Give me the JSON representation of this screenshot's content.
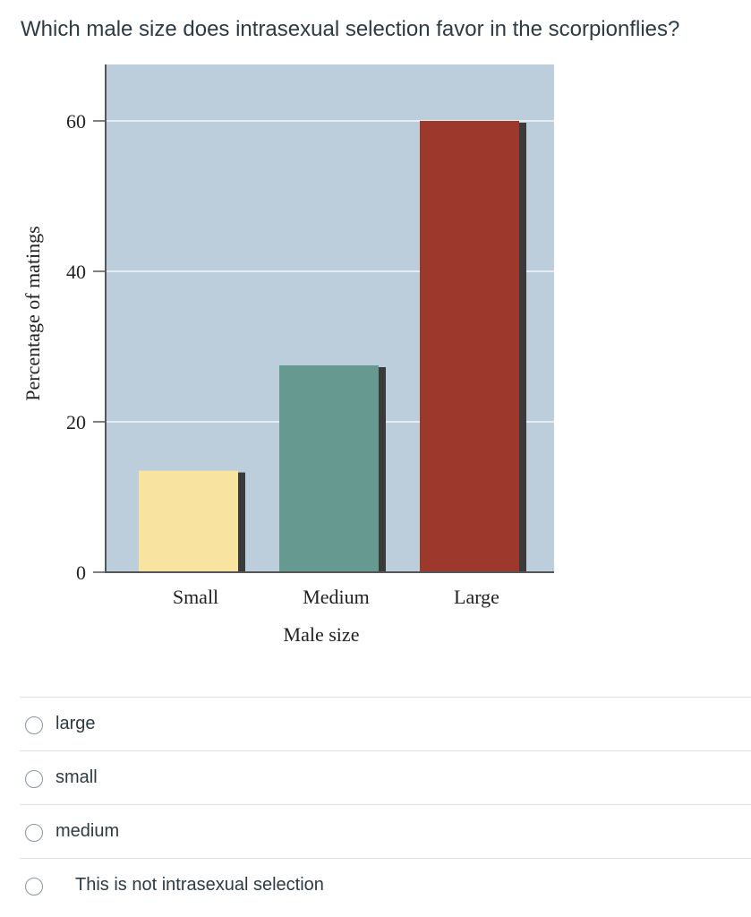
{
  "question": {
    "text": "Which male size does intrasexual selection favor in the scorpionflies?"
  },
  "chart_data": {
    "type": "bar",
    "categories": [
      "Small",
      "Medium",
      "Large"
    ],
    "values": [
      13.5,
      27.5,
      60
    ],
    "colors": [
      "#f8e4a0",
      "#66998f",
      "#9c382c"
    ],
    "xlabel": "Male size",
    "ylabel": "Percentage of matings",
    "yticks": [
      0,
      20,
      40,
      60
    ],
    "ylim": [
      0,
      66
    ],
    "grid": true,
    "background": "#bccddc"
  },
  "answers": [
    {
      "label": "large"
    },
    {
      "label": "small"
    },
    {
      "label": "medium"
    },
    {
      "label": "This is not intrasexual selection"
    }
  ]
}
